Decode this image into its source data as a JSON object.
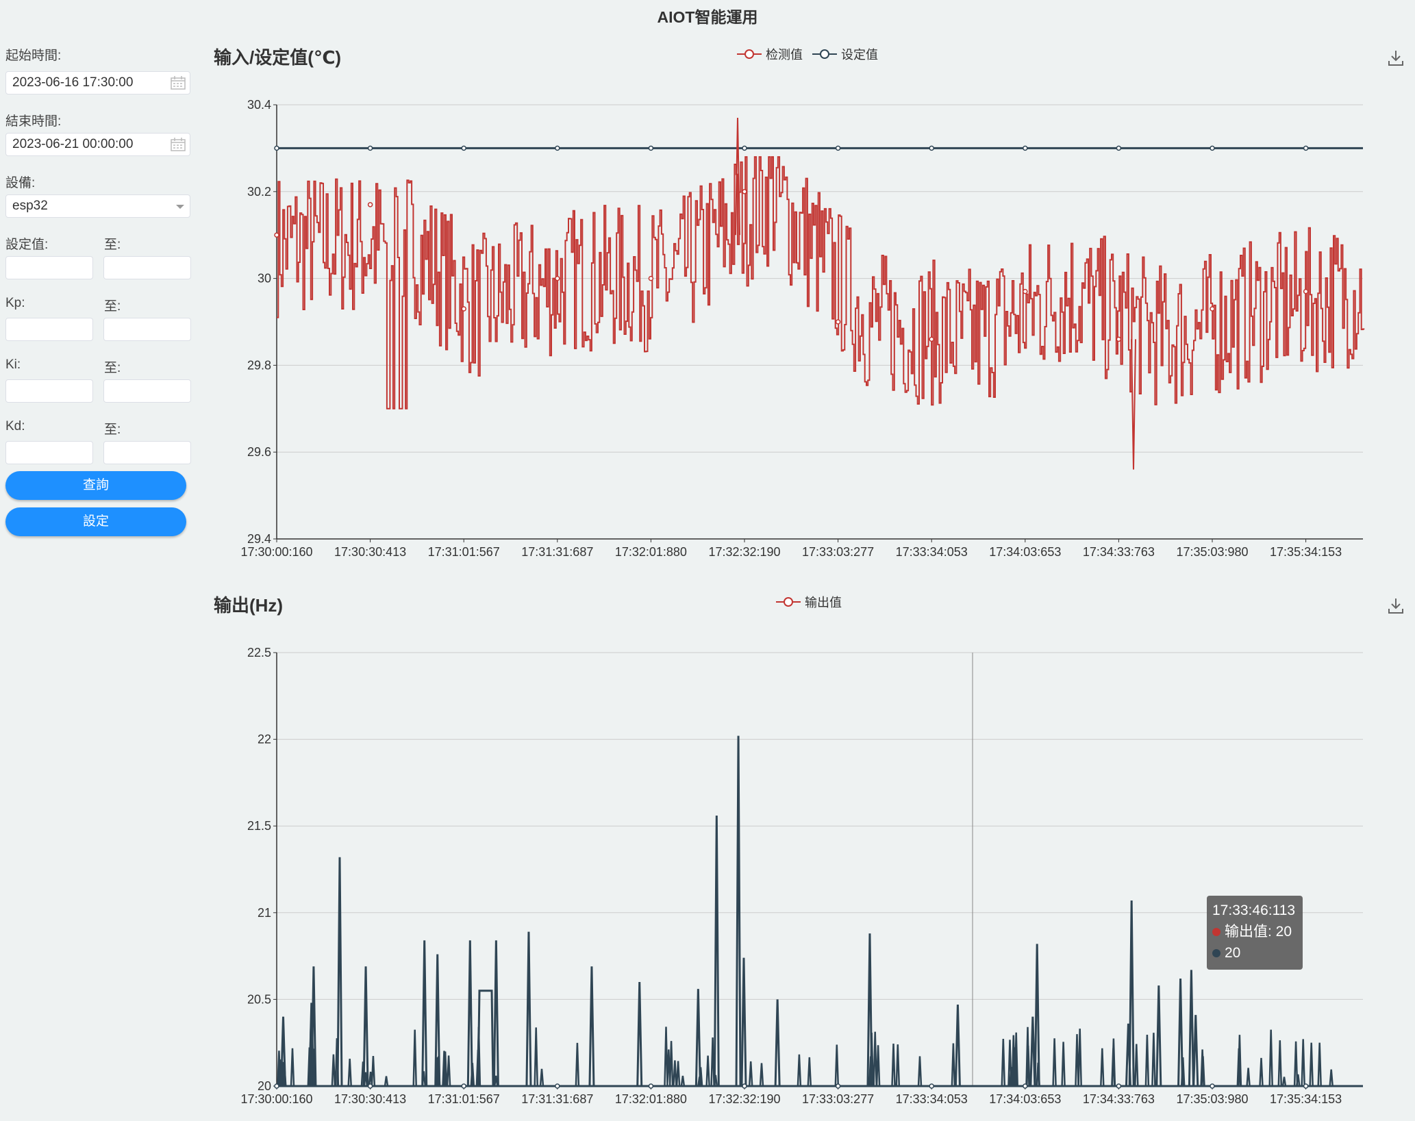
{
  "app": {
    "title": "AIOT智能運用"
  },
  "sidebar": {
    "start_label": "起始時間:",
    "start_value": "2023-06-16 17:30:00",
    "end_label": "結束時間:",
    "end_value": "2023-06-21 00:00:00",
    "device_label": "設備:",
    "device_value": "esp32",
    "setpoint_label": "設定值:",
    "kp_label": "Kp:",
    "ki_label": "Ki:",
    "kd_label": "Kd:",
    "to_label": "至:",
    "query_button": "查詢",
    "set_button": "設定"
  },
  "icons": {
    "calendar": "calendar-icon",
    "dropdown": "chevron-down-icon",
    "download": "download-icon"
  },
  "colors": {
    "measured": "#c23531",
    "setpoint": "#2f4554",
    "button": "#1e90ff"
  },
  "charts": {
    "input": {
      "title": "输入/设定值(℃)",
      "legend": [
        "检测值",
        "设定值"
      ]
    },
    "output": {
      "title": "输出(Hz)",
      "legend": [
        "输出值"
      ]
    }
  },
  "tooltip": {
    "time": "17:33:46:113",
    "line1": "输出值: 20",
    "line2": "20"
  },
  "chart_data": [
    {
      "type": "line",
      "title": "输入/设定值(℃)",
      "x_ticks": [
        "17:30:00:160",
        "17:30:30:413",
        "17:31:01:567",
        "17:31:31:687",
        "17:32:01:880",
        "17:32:32:190",
        "17:33:03:277",
        "17:33:34:053",
        "17:34:03:653",
        "17:34:33:763",
        "17:35:03:980",
        "17:35:34:153"
      ],
      "ylim": [
        29.4,
        30.4
      ],
      "y_ticks": [
        "29.4",
        "29.6",
        "29.8",
        "30",
        "30.2",
        "30.4"
      ],
      "grid": true,
      "legend_position": "top-center",
      "series": [
        {
          "name": "检测值",
          "color": "#c23531",
          "x": [
            "17:30:00:160",
            "17:30:30:413",
            "17:31:01:567",
            "17:31:31:687",
            "17:32:01:880",
            "17:32:32:190",
            "17:33:03:277",
            "17:33:34:053",
            "17:34:03:653",
            "17:34:33:763",
            "17:35:03:980",
            "17:35:34:153"
          ],
          "values": [
            30.1,
            30.17,
            29.93,
            30,
            30,
            30.2,
            29.9,
            29.86,
            29.97,
            29.86,
            29.93,
            29.97
          ],
          "approx_min": 29.56,
          "approx_max": 30.37
        },
        {
          "name": "设定值",
          "color": "#2f4554",
          "x": [
            "17:30:00:160",
            "17:30:30:413",
            "17:31:01:567",
            "17:31:31:687",
            "17:32:01:880",
            "17:32:32:190",
            "17:33:03:277",
            "17:33:34:053",
            "17:34:03:653",
            "17:34:33:763",
            "17:35:03:980",
            "17:35:34:153"
          ],
          "values": [
            30.3,
            30.3,
            30.3,
            30.3,
            30.3,
            30.3,
            30.3,
            30.3,
            30.3,
            30.3,
            30.3,
            30.3
          ]
        }
      ]
    },
    {
      "type": "line",
      "title": "输出(Hz)",
      "x_ticks": [
        "17:30:00:160",
        "17:30:30:413",
        "17:31:01:567",
        "17:31:31:687",
        "17:32:01:880",
        "17:32:32:190",
        "17:33:03:277",
        "17:33:34:053",
        "17:34:03:653",
        "17:34:33:763",
        "17:35:03:980",
        "17:35:34:153"
      ],
      "ylim": [
        20,
        22.5
      ],
      "y_ticks": [
        "20",
        "20.5",
        "21",
        "21.5",
        "22",
        "22.5"
      ],
      "grid": true,
      "legend_position": "top-center",
      "series": [
        {
          "name": "输出值",
          "color": "#2f4554",
          "baseline": 20,
          "spikes": [
            {
              "t": 0.006,
              "v": 20.4
            },
            {
              "t": 0.032,
              "v": 20.48
            },
            {
              "t": 0.034,
              "v": 20.69
            },
            {
              "t": 0.058,
              "v": 21.32
            },
            {
              "t": 0.082,
              "v": 20.69
            },
            {
              "t": 0.136,
              "v": 20.84
            },
            {
              "t": 0.148,
              "v": 20.76
            },
            {
              "t": 0.178,
              "v": 20.84
            },
            {
              "t": 0.202,
              "v": 20.84
            },
            {
              "t": 0.232,
              "v": 20.89
            },
            {
              "t": 0.29,
              "v": 20.69
            },
            {
              "t": 0.334,
              "v": 20.6
            },
            {
              "t": 0.388,
              "v": 20.56
            },
            {
              "t": 0.405,
              "v": 21.56
            },
            {
              "t": 0.425,
              "v": 22.02
            },
            {
              "t": 0.43,
              "v": 20.74
            },
            {
              "t": 0.461,
              "v": 20.5
            },
            {
              "t": 0.546,
              "v": 20.88
            },
            {
              "t": 0.627,
              "v": 20.47
            },
            {
              "t": 0.696,
              "v": 20.4
            },
            {
              "t": 0.7,
              "v": 20.82
            },
            {
              "t": 0.784,
              "v": 20.36
            },
            {
              "t": 0.787,
              "v": 21.07
            },
            {
              "t": 0.812,
              "v": 20.58
            },
            {
              "t": 0.832,
              "v": 20.62
            },
            {
              "t": 0.842,
              "v": 20.67
            },
            {
              "t": 0.846,
              "v": 20.41
            }
          ]
        }
      ],
      "hover_x": "17:33:46:113"
    }
  ]
}
